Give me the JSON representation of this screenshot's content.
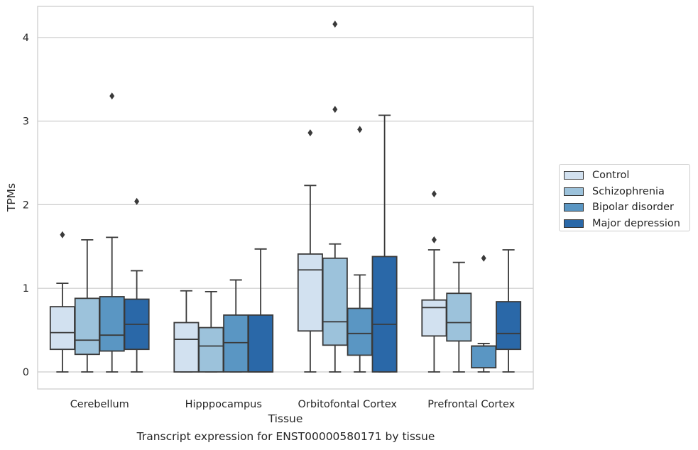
{
  "chart_data": {
    "type": "boxplot",
    "xlabel": "Tissue",
    "ylabel": "TPMs",
    "caption": "Transcript expression for ENST00000580171 by tissue",
    "ylim": [
      -0.2,
      4.38
    ],
    "yticks": [
      0,
      1,
      2,
      3,
      4
    ],
    "grid": true,
    "legend_position": "center-right",
    "categories": [
      "Cerebellum",
      "Hipppocampus",
      "Orbitofontal Cortex",
      "Prefrontal Cortex"
    ],
    "series": [
      {
        "name": "Control",
        "color": "#d2e1f0",
        "boxes": [
          {
            "whislo": 0,
            "q1": 0.27,
            "med": 0.47,
            "q3": 0.78,
            "whishi": 1.06,
            "fliers": [
              1.64
            ]
          },
          {
            "whislo": 0,
            "q1": 0,
            "med": 0.39,
            "q3": 0.59,
            "whishi": 0.97,
            "fliers": []
          },
          {
            "whislo": 0,
            "q1": 0.49,
            "med": 1.22,
            "q3": 1.41,
            "whishi": 2.23,
            "fliers": [
              2.86
            ]
          },
          {
            "whislo": 0,
            "q1": 0.43,
            "med": 0.77,
            "q3": 0.86,
            "whishi": 1.46,
            "fliers": [
              1.58,
              2.13
            ]
          }
        ]
      },
      {
        "name": "Schizophrenia",
        "color": "#9cc2db",
        "boxes": [
          {
            "whislo": 0,
            "q1": 0.21,
            "med": 0.38,
            "q3": 0.88,
            "whishi": 1.58,
            "fliers": []
          },
          {
            "whislo": 0,
            "q1": 0,
            "med": 0.31,
            "q3": 0.53,
            "whishi": 0.96,
            "fliers": []
          },
          {
            "whislo": 0,
            "q1": 0.32,
            "med": 0.6,
            "q3": 1.36,
            "whishi": 1.53,
            "fliers": [
              3.14,
              4.16
            ]
          },
          {
            "whislo": 0,
            "q1": 0.37,
            "med": 0.59,
            "q3": 0.94,
            "whishi": 1.31,
            "fliers": []
          }
        ]
      },
      {
        "name": "Bipolar disorder",
        "color": "#5a96c3",
        "boxes": [
          {
            "whislo": 0,
            "q1": 0.25,
            "med": 0.44,
            "q3": 0.9,
            "whishi": 1.61,
            "fliers": [
              3.3
            ]
          },
          {
            "whislo": 0,
            "q1": 0,
            "med": 0.35,
            "q3": 0.68,
            "whishi": 1.1,
            "fliers": []
          },
          {
            "whislo": 0,
            "q1": 0.2,
            "med": 0.46,
            "q3": 0.76,
            "whishi": 1.16,
            "fliers": [
              2.9
            ]
          },
          {
            "whislo": 0,
            "q1": 0.05,
            "med": 0.31,
            "q3": 0.31,
            "whishi": 0.34,
            "fliers": [
              1.36
            ]
          }
        ]
      },
      {
        "name": "Major depression",
        "color": "#2a68a8",
        "boxes": [
          {
            "whislo": 0,
            "q1": 0.27,
            "med": 0.57,
            "q3": 0.87,
            "whishi": 1.21,
            "fliers": [
              2.04
            ]
          },
          {
            "whislo": 0,
            "q1": 0,
            "med": 0,
            "q3": 0.68,
            "whishi": 1.47,
            "fliers": []
          },
          {
            "whislo": 0,
            "q1": 0,
            "med": 0.57,
            "q3": 1.38,
            "whishi": 3.07,
            "fliers": []
          },
          {
            "whislo": 0,
            "q1": 0.27,
            "med": 0.46,
            "q3": 0.84,
            "whishi": 1.46,
            "fliers": []
          }
        ]
      }
    ]
  }
}
